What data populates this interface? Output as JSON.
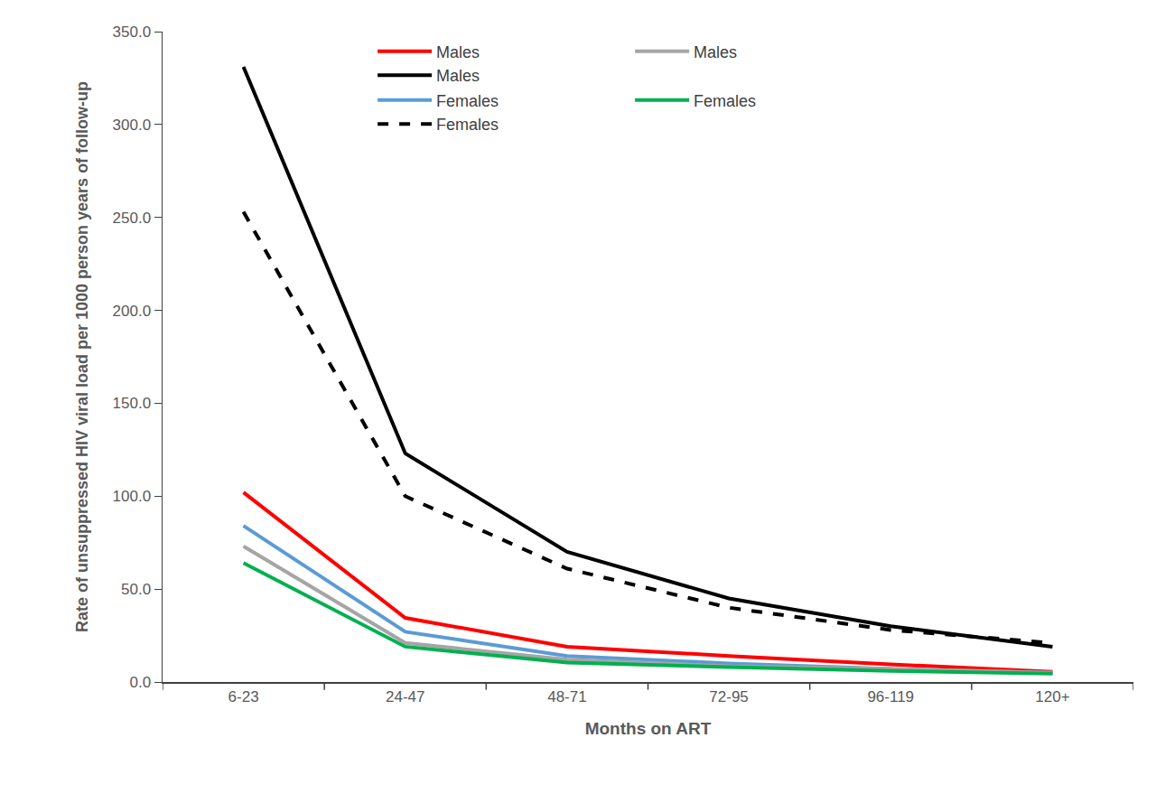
{
  "chart_data": {
    "type": "line",
    "x_label": "Months on ART",
    "y_label": "Rate of unsuppressed HIV viral load per 1000 person years of follow-up",
    "categories": [
      "6-23",
      "24-47",
      "48-71",
      "72-95",
      "96-119",
      "120+"
    ],
    "series": [
      {
        "name": "Males",
        "color": "#ff0000",
        "line_style": "solid",
        "values": [
          102,
          34.5,
          19,
          14,
          9.5,
          5.5
        ]
      },
      {
        "name": "Females",
        "color": "#5b9bd5",
        "line_style": "solid",
        "values": [
          84,
          27,
          14,
          10,
          7,
          5
        ]
      },
      {
        "name": "Males",
        "color": "#a5a5a5",
        "line_style": "solid",
        "values": [
          73,
          21,
          12,
          8.5,
          7,
          5
        ]
      },
      {
        "name": "Females",
        "color": "#00b050",
        "line_style": "solid",
        "values": [
          64,
          19,
          10.5,
          8,
          6,
          4.5
        ]
      },
      {
        "name": "Males",
        "color": "#000000",
        "line_style": "solid",
        "values": [
          331,
          123,
          70,
          45,
          30,
          19
        ]
      },
      {
        "name": "Females",
        "color": "#000000",
        "line_style": "dashed",
        "values": [
          253,
          100,
          61,
          40,
          28,
          21
        ]
      }
    ],
    "ylim": [
      0,
      350
    ],
    "yticks": [
      {
        "value": 0,
        "label": "0.0"
      },
      {
        "value": 50,
        "label": "50.0"
      },
      {
        "value": 100,
        "label": "100.0"
      },
      {
        "value": 150,
        "label": "150.0"
      },
      {
        "value": 200,
        "label": "200.0"
      },
      {
        "value": 250,
        "label": "250.0"
      },
      {
        "value": 300,
        "label": "300.0"
      },
      {
        "value": 350,
        "label": "350.0"
      }
    ],
    "grid": false,
    "legend": "top right"
  }
}
